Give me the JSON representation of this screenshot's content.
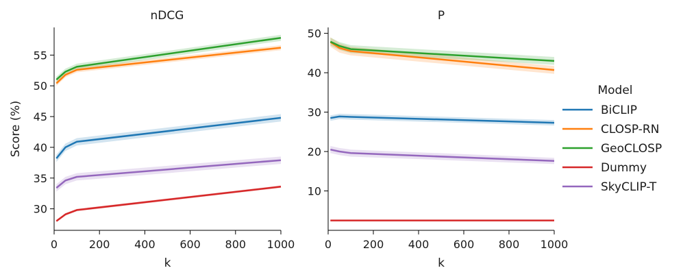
{
  "chart_data": [
    {
      "type": "line",
      "title": "nDCG",
      "xlabel": "k",
      "ylabel": "Score (%)",
      "xlim": [
        0,
        1000
      ],
      "ylim": [
        26.5,
        59.5
      ],
      "xticks": [
        0,
        200,
        400,
        600,
        800,
        1000
      ],
      "yticks": [
        30,
        35,
        40,
        45,
        50,
        55
      ],
      "x": [
        10,
        50,
        100,
        1000
      ],
      "series": [
        {
          "name": "BiCLIP",
          "values": [
            38.2,
            40.0,
            40.9,
            44.8
          ],
          "band": [
            0.6,
            0.6,
            0.6,
            0.6
          ]
        },
        {
          "name": "CLOSP-RN",
          "values": [
            50.4,
            51.8,
            52.6,
            56.2
          ],
          "band": [
            0.4,
            0.4,
            0.4,
            0.4
          ]
        },
        {
          "name": "GeoCLOSP",
          "values": [
            51.0,
            52.3,
            53.1,
            57.8
          ],
          "band": [
            0.5,
            0.5,
            0.5,
            0.5
          ]
        },
        {
          "name": "Dummy",
          "values": [
            28.0,
            29.1,
            29.8,
            33.6
          ],
          "band": [
            0.2,
            0.2,
            0.2,
            0.2
          ]
        },
        {
          "name": "SkyCLIP-T",
          "values": [
            33.4,
            34.6,
            35.2,
            37.9
          ],
          "band": [
            0.6,
            0.6,
            0.6,
            0.6
          ]
        }
      ]
    },
    {
      "type": "line",
      "title": "P",
      "xlabel": "k",
      "ylabel": "",
      "xlim": [
        0,
        1000
      ],
      "ylim": [
        0,
        51.5
      ],
      "xticks": [
        0,
        200,
        400,
        600,
        800,
        1000
      ],
      "yticks": [
        10,
        20,
        30,
        40,
        50
      ],
      "x": [
        10,
        50,
        100,
        1000
      ],
      "series": [
        {
          "name": "BiCLIP",
          "values": [
            28.5,
            28.9,
            28.8,
            27.3
          ],
          "band": [
            0.7,
            0.7,
            0.7,
            0.7
          ]
        },
        {
          "name": "CLOSP-RN",
          "values": [
            47.8,
            46.3,
            45.5,
            40.7
          ],
          "band": [
            1.2,
            1.2,
            1.1,
            1.0
          ]
        },
        {
          "name": "GeoCLOSP",
          "values": [
            47.9,
            46.8,
            46.0,
            43.0
          ],
          "band": [
            1.0,
            1.0,
            1.0,
            1.0
          ]
        },
        {
          "name": "Dummy",
          "values": [
            2.5,
            2.5,
            2.5,
            2.5
          ],
          "band": [
            0.1,
            0.1,
            0.1,
            0.1
          ]
        },
        {
          "name": "SkyCLIP-T",
          "values": [
            20.5,
            20.0,
            19.6,
            17.6
          ],
          "band": [
            0.9,
            0.9,
            0.9,
            0.8
          ]
        }
      ]
    }
  ],
  "legend": {
    "title": "Model",
    "placement": "right",
    "entries": [
      {
        "label": "BiCLIP",
        "color": "#1f77b4"
      },
      {
        "label": "CLOSP-RN",
        "color": "#ff7f0e"
      },
      {
        "label": "GeoCLOSP",
        "color": "#2ca02c"
      },
      {
        "label": "Dummy",
        "color": "#d62728"
      },
      {
        "label": "SkyCLIP-T",
        "color": "#9467bd"
      }
    ]
  }
}
